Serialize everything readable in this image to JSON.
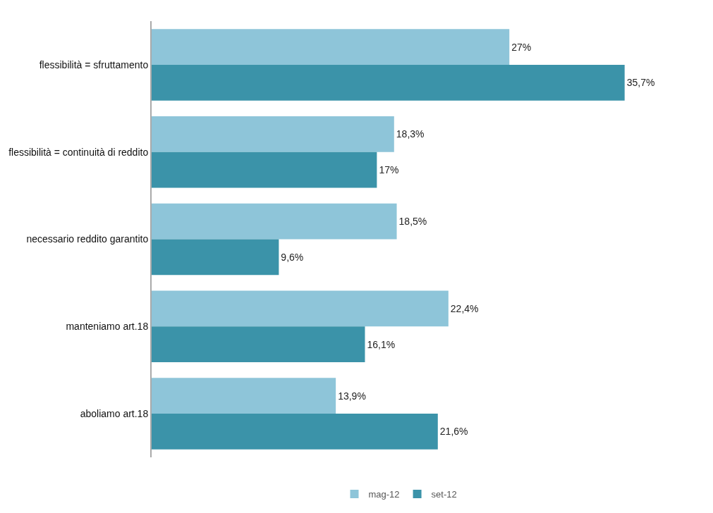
{
  "chart_data": {
    "type": "bar",
    "orientation": "horizontal",
    "categories": [
      "flessibilità = sfruttamento",
      "flessibilità = continuità di reddito",
      "necessario reddito garantito",
      "manteniamo art.18",
      "aboliamo art.18"
    ],
    "series": [
      {
        "name": "mag-12",
        "color": "#8ec5d9",
        "values": [
          27,
          18.3,
          18.5,
          22.4,
          13.9
        ],
        "value_labels": [
          "27%",
          "18,3%",
          "18,5%",
          "22,4%",
          "13,9%"
        ]
      },
      {
        "name": "set-12",
        "color": "#3b93a9",
        "values": [
          35.7,
          17,
          9.6,
          16.1,
          21.6
        ],
        "value_labels": [
          "35,7%",
          "17%",
          "9,6%",
          "16,1%",
          "21,6%"
        ]
      }
    ],
    "tick_labels": "y",
    "legend": "bottom"
  }
}
